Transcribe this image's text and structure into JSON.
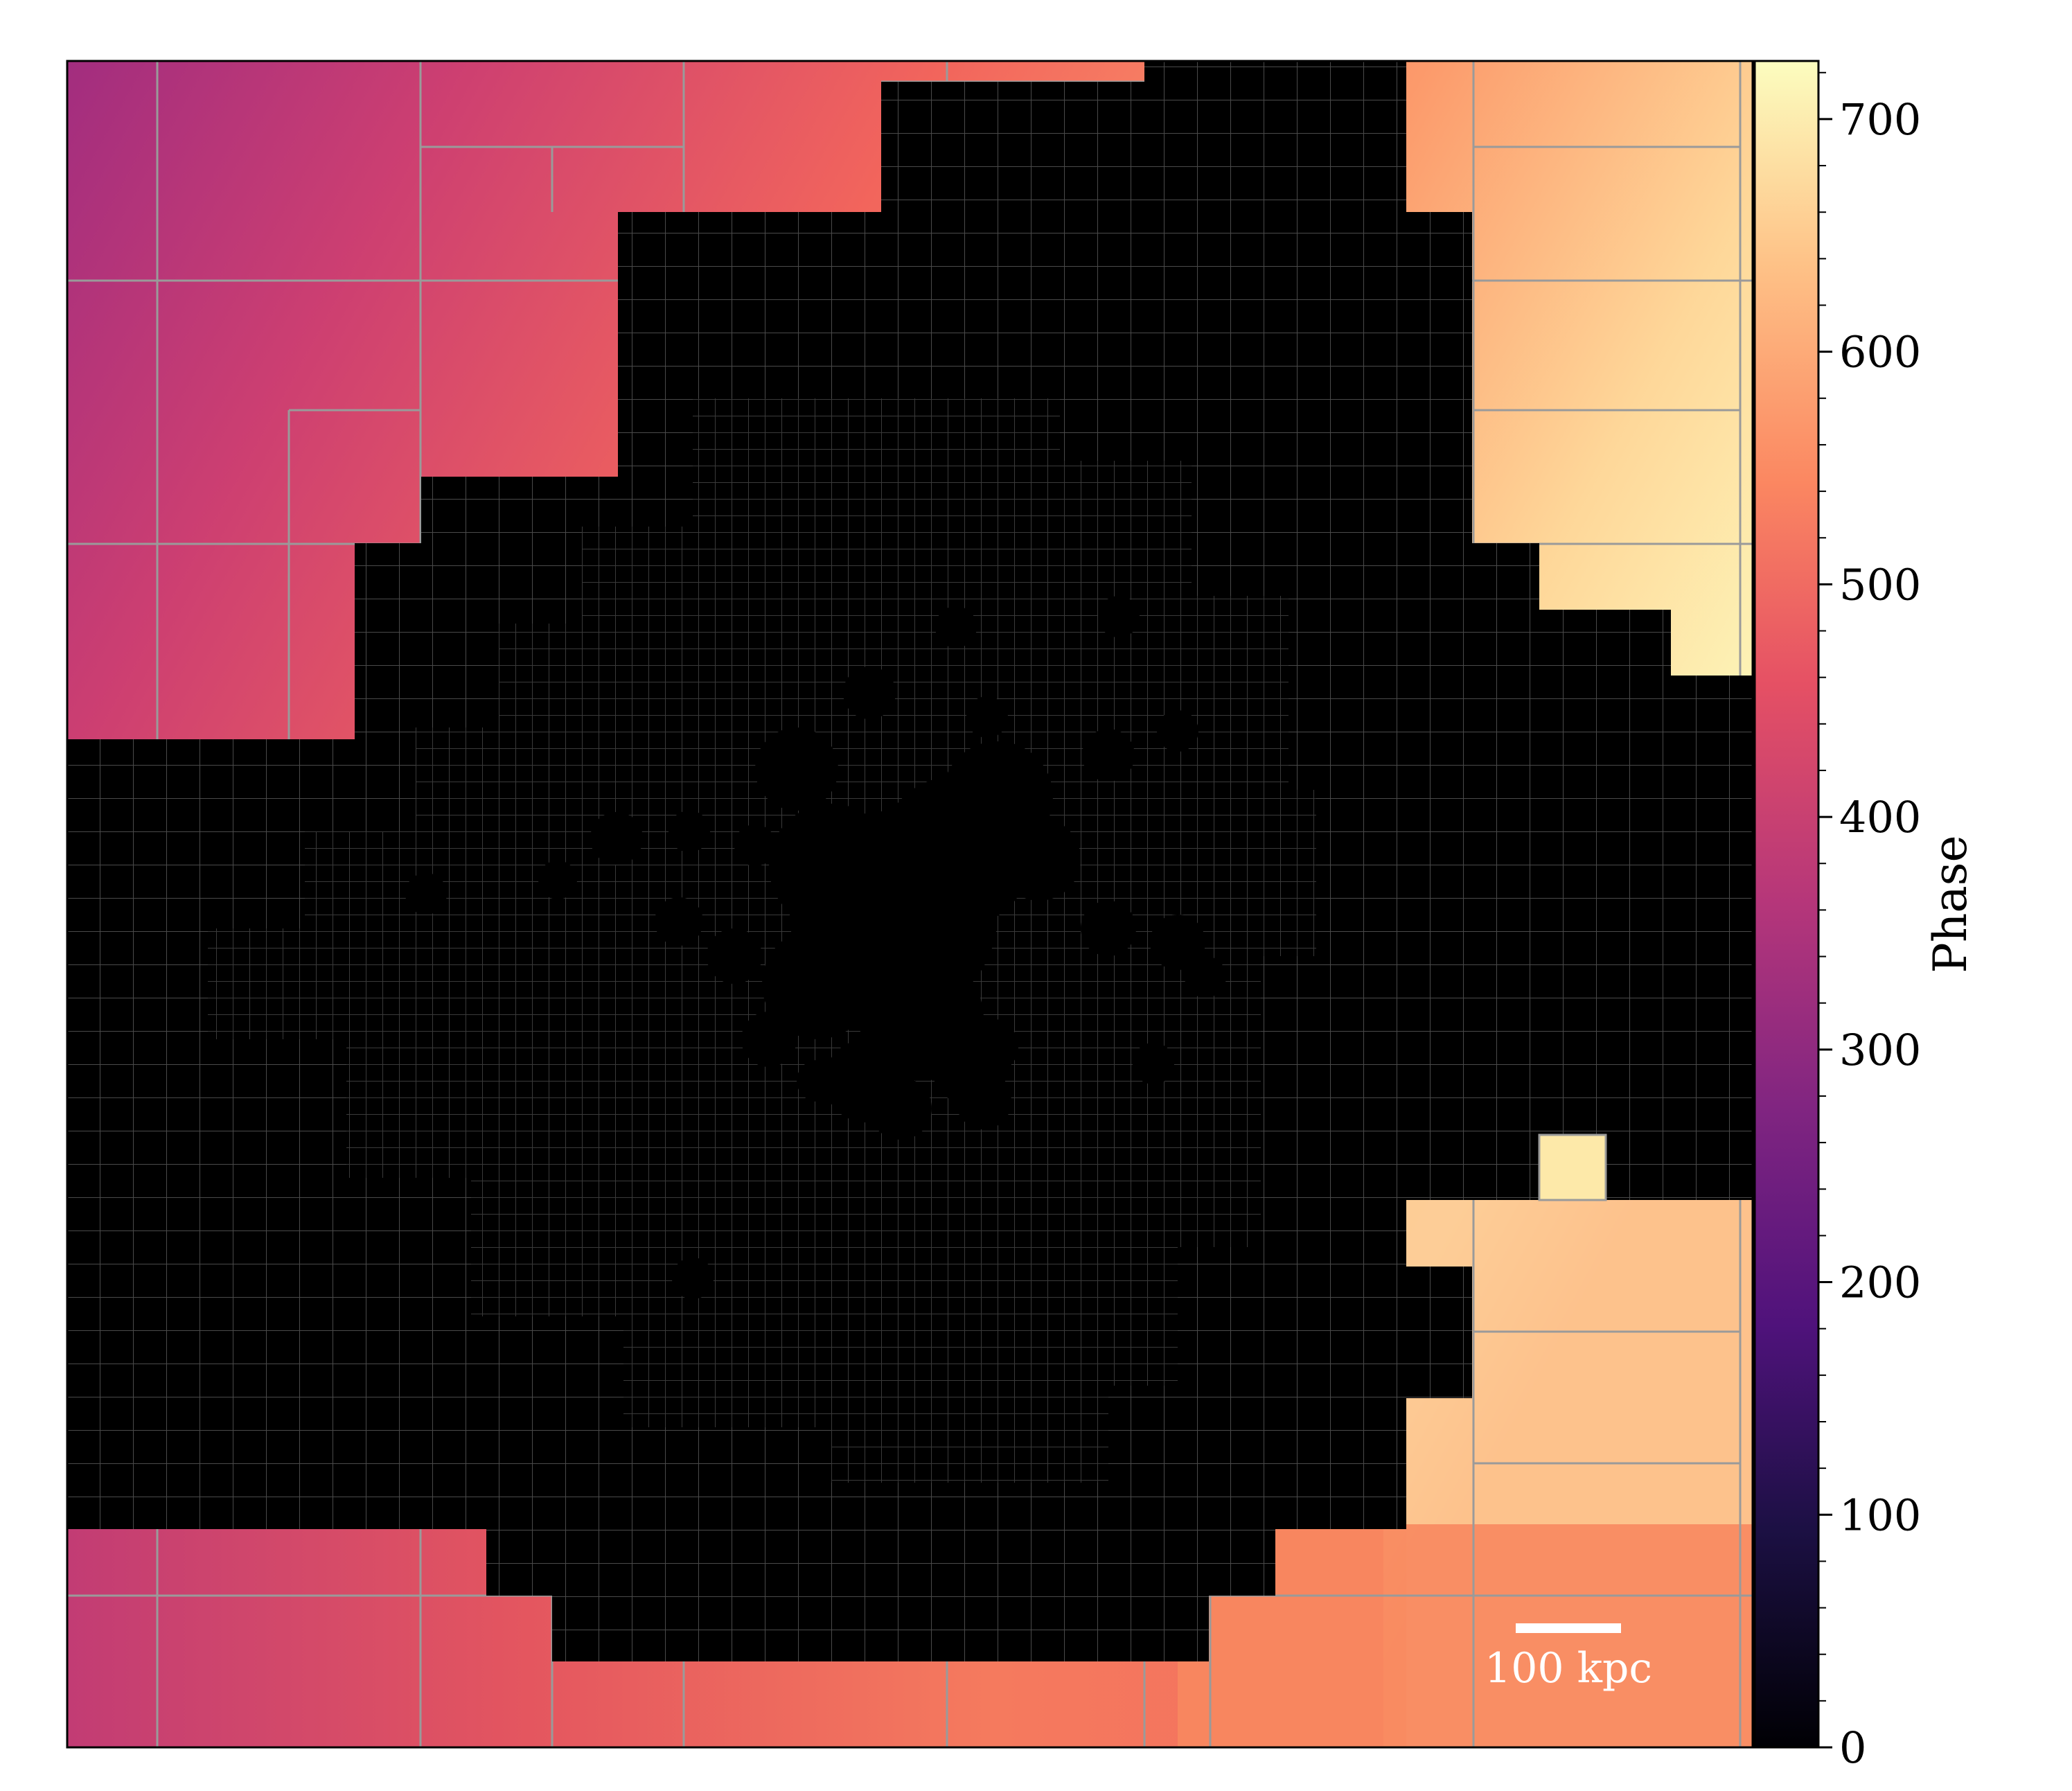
{
  "chart_data": {
    "type": "heatmap",
    "description_units": "phase",
    "colormap": "magma",
    "colorbar": {
      "label": "Phase",
      "min": 0,
      "max": 725,
      "ticks": [
        0,
        100,
        200,
        300,
        400,
        500,
        600,
        700
      ],
      "tick_labels": [
        "0",
        "100",
        "200",
        "300",
        "400",
        "500",
        "600",
        "700"
      ]
    },
    "scale_bar": {
      "label": "100 kpc"
    },
    "overlay": "AMR grid cell boundaries",
    "axes_visible": false,
    "colors": {
      "grid_line": "#9a9a9a",
      "inner_grid_line": "#3a3a3a",
      "core": "#000000",
      "scale_bar": "#ffffff"
    }
  }
}
